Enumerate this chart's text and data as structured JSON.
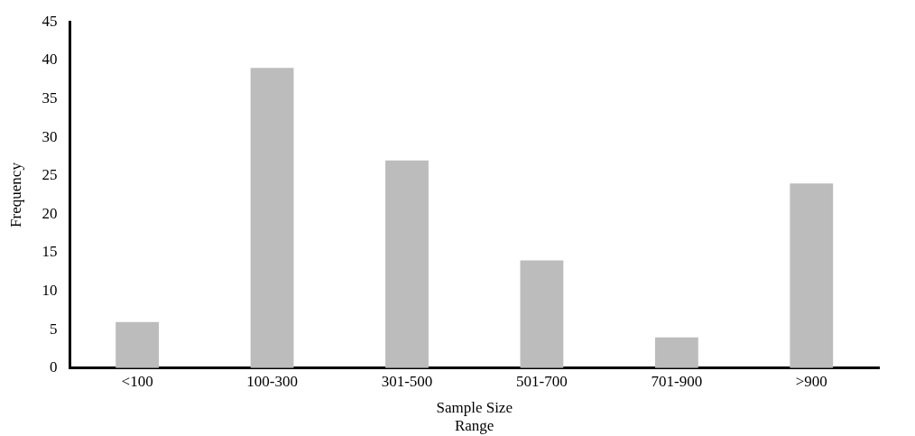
{
  "chart_data": {
    "type": "bar",
    "xlabel": "Sample Size\nRange",
    "ylabel": "Frequency",
    "categories": [
      "<100",
      "100-300",
      "301-500",
      "501-700",
      "701-900",
      ">900"
    ],
    "values": [
      6,
      39,
      27,
      14,
      4,
      24
    ],
    "color": "#bbbcbb",
    "ylim": [
      0,
      45
    ],
    "yticks": [
      0,
      5,
      10,
      15,
      20,
      25,
      30,
      35,
      40,
      45
    ],
    "grid": false,
    "legend": false
  }
}
